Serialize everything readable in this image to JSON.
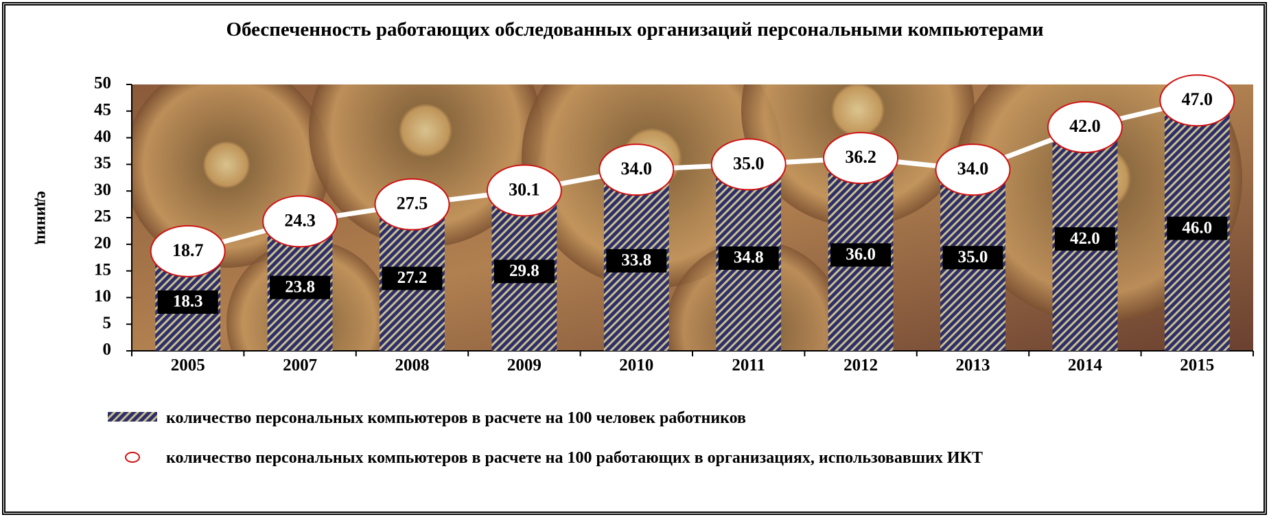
{
  "chart_data": {
    "type": "bar",
    "title": "Обеспеченность работающих обследованных организаций персональными компьютерами",
    "ylabel": "единиц",
    "categories": [
      "2005",
      "2007",
      "2008",
      "2009",
      "2010",
      "2011",
      "2012",
      "2013",
      "2014",
      "2015"
    ],
    "series": [
      {
        "name": "количество персональных компьютеров в расчете на 100 человек работников",
        "type": "bar",
        "color": "#2e2e6a",
        "values": [
          18.3,
          23.8,
          27.2,
          29.8,
          33.8,
          34.8,
          36,
          35,
          42,
          46
        ],
        "value_labels": [
          "18.3",
          "23.8",
          "27.2",
          "29.8",
          "33.8",
          "34.8",
          "36.0",
          "35.0",
          "42.0",
          "46.0"
        ]
      },
      {
        "name": "количество персональных компьютеров в расчете на 100 работающих в организациях, использовавших ИКТ",
        "type": "line",
        "color": "#ffffff",
        "values": [
          18.7,
          24.3,
          27.5,
          30.1,
          34,
          35,
          36.2,
          34,
          42,
          47
        ],
        "value_labels": [
          "18.7",
          "24.3",
          "27.5",
          "30.1",
          "34.0",
          "35.0",
          "36.2",
          "34.0",
          "42.0",
          "47.0"
        ]
      }
    ],
    "ylim": [
      0,
      50
    ],
    "yticks": [
      0,
      5,
      10,
      15,
      20,
      25,
      30,
      35,
      40,
      45,
      50
    ]
  }
}
